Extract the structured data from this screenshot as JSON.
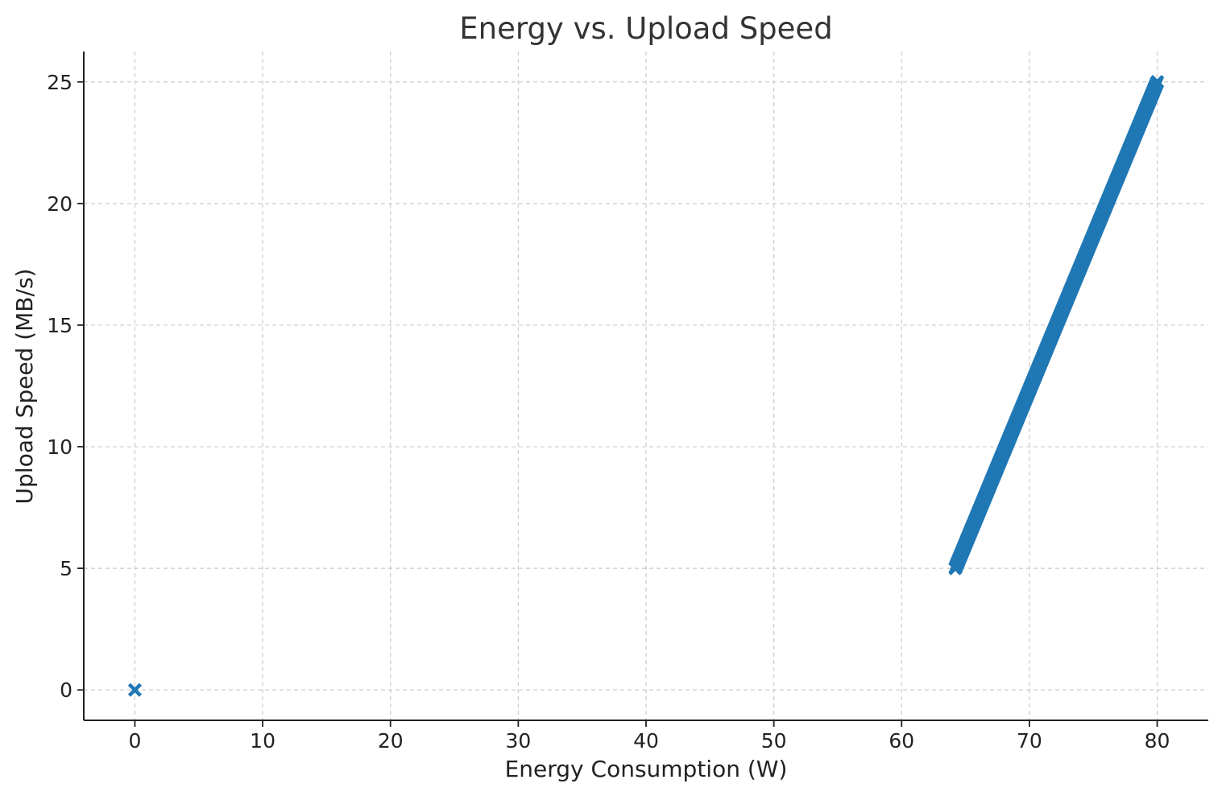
{
  "chart_data": {
    "type": "scatter",
    "title": "Energy vs. Upload Speed",
    "xlabel": "Energy Consumption (W)",
    "ylabel": "Upload Speed (MB/s)",
    "xlim": [
      -4,
      84
    ],
    "ylim": [
      -1.25,
      26.25
    ],
    "xticks": [
      0,
      10,
      20,
      30,
      40,
      50,
      60,
      70,
      80
    ],
    "yticks": [
      0,
      5,
      10,
      15,
      20,
      25
    ],
    "xtick_labels": [
      "0",
      "10",
      "20",
      "30",
      "40",
      "50",
      "60",
      "70",
      "80"
    ],
    "ytick_labels": [
      "0",
      "5",
      "10",
      "15",
      "20",
      "25"
    ],
    "grid": true,
    "marker": "x",
    "series": [
      {
        "color": "#1f77b4",
        "points": [
          {
            "x": 0,
            "y": 0
          },
          {
            "x": 64.2,
            "y": 5.0
          },
          {
            "x": 80.0,
            "y": 25.0
          }
        ],
        "dense_segment": {
          "x_start": 64.2,
          "y_start": 5.0,
          "x_end": 80.0,
          "y_end": 25.0,
          "count": 400
        }
      }
    ]
  }
}
